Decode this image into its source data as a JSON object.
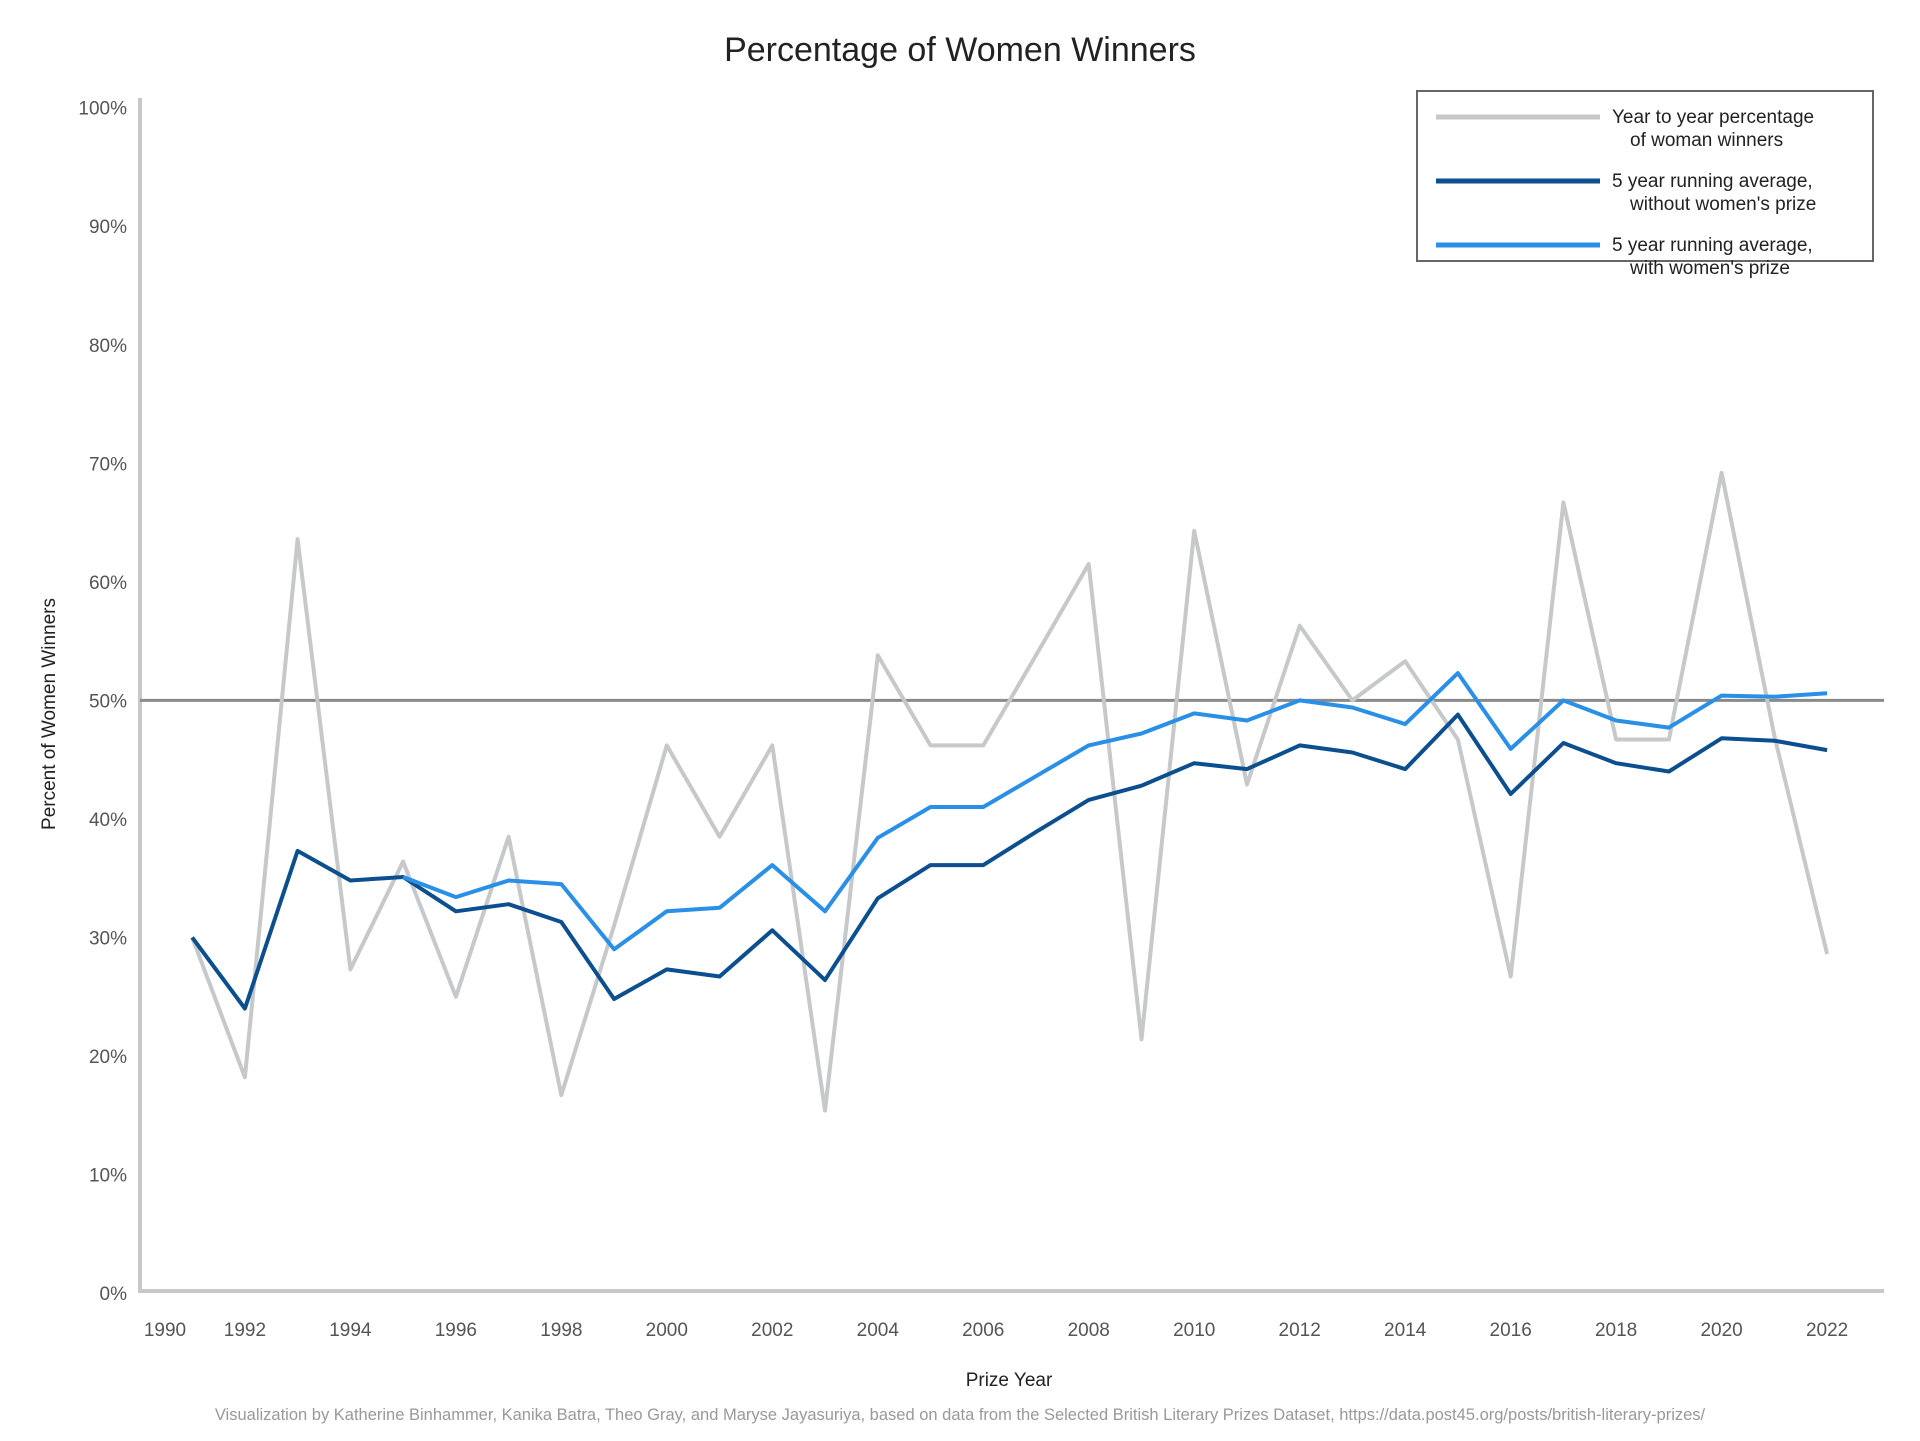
{
  "chart_data": {
    "type": "line",
    "title": "Percentage of Women Winners",
    "xlabel": "Prize Year",
    "ylabel": "Percent of Women Winners",
    "footer": "Visualization by Katherine Binhammer, Kanika Batra, Theo Gray, and Maryse Jayasuriya, based on data from the Selected British Literary Prizes Dataset, https://data.post45.org/posts/british-literary-prizes/",
    "xlim": [
      1990,
      2023
    ],
    "ylim": [
      0,
      100
    ],
    "x_ticks": [
      "1990",
      "1992",
      "1994",
      "1996",
      "1998",
      "2000",
      "2002",
      "2004",
      "2006",
      "2008",
      "2010",
      "2012",
      "2014",
      "2016",
      "2018",
      "2020",
      "2022"
    ],
    "y_ticks": [
      "0%",
      "10%",
      "20%",
      "30%",
      "40%",
      "50%",
      "60%",
      "70%",
      "80%",
      "90%",
      "100%"
    ],
    "reference_line": 50,
    "grid": false,
    "legend_position": "top-right",
    "series": [
      {
        "name": "Year to year percentage of woman winners",
        "legend_lines": [
          "Year to year percentage",
          "of woman winners"
        ],
        "color": "#c6c8c9",
        "x": [
          1991,
          1992,
          1993,
          1994,
          1995,
          1996,
          1997,
          1998,
          1999,
          2000,
          2001,
          2002,
          2003,
          2004,
          2005,
          2006,
          2007,
          2008,
          2009,
          2010,
          2011,
          2012,
          2013,
          2014,
          2015,
          2016,
          2017,
          2018,
          2019,
          2020,
          2021,
          2022
        ],
        "values": [
          30,
          18.2,
          63.6,
          27.3,
          36.4,
          25,
          38.5,
          16.7,
          31,
          46.2,
          38.5,
          46.2,
          15.4,
          53.8,
          46.2,
          46.2,
          53.8,
          61.5,
          21.4,
          64.3,
          42.9,
          56.3,
          50,
          53.3,
          46.7,
          26.7,
          66.7,
          46.7,
          46.7,
          69.2,
          47,
          28.6
        ]
      },
      {
        "name": "5 year running average, without women's prize",
        "legend_lines": [
          "5 year running average,",
          "without women's prize"
        ],
        "color": "#0b4f8f",
        "x": [
          1991,
          1992,
          1993,
          1994,
          1995,
          1996,
          1997,
          1998,
          1999,
          2000,
          2001,
          2002,
          2003,
          2004,
          2005,
          2006,
          2007,
          2008,
          2009,
          2010,
          2011,
          2012,
          2013,
          2014,
          2015,
          2016,
          2017,
          2018,
          2019,
          2020,
          2021,
          2022
        ],
        "values": [
          30,
          24,
          37.3,
          34.8,
          35.1,
          32.2,
          32.8,
          31.3,
          24.8,
          27.3,
          26.7,
          30.6,
          26.4,
          33.3,
          36.1,
          36.1,
          38.9,
          41.6,
          42.8,
          44.7,
          44.2,
          46.2,
          45.6,
          44.2,
          48.8,
          42.1,
          46.4,
          44.7,
          44,
          46.8,
          46.6,
          45.8
        ]
      },
      {
        "name": "5 year running average, with women's prize",
        "legend_lines": [
          "5 year running average,",
          "with women's prize"
        ],
        "color": "#2a8fe6",
        "x": [
          1995,
          1996,
          1997,
          1998,
          1999,
          2000,
          2001,
          2002,
          2003,
          2004,
          2005,
          2006,
          2007,
          2008,
          2009,
          2010,
          2011,
          2012,
          2013,
          2014,
          2015,
          2016,
          2017,
          2018,
          2019,
          2020,
          2021,
          2022
        ],
        "values": [
          35.1,
          33.4,
          34.8,
          34.5,
          29,
          32.2,
          32.5,
          36.1,
          32.2,
          38.4,
          41,
          41,
          43.6,
          46.2,
          47.2,
          48.9,
          48.3,
          50,
          49.4,
          48,
          52.3,
          45.9,
          50,
          48.3,
          47.7,
          50.4,
          50.3,
          50.6
        ]
      }
    ]
  }
}
